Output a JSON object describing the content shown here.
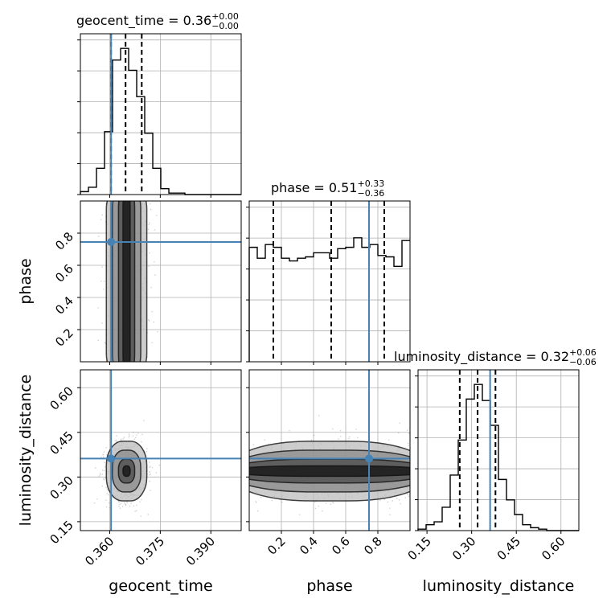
{
  "chart_data": {
    "type": "corner",
    "parameters": [
      "geocent_time",
      "phase",
      "luminosity_distance"
    ],
    "colors": {
      "truth": "#4682b4",
      "hist": "#000000",
      "grid": "#b0b0b0",
      "points": "#6e6e6e"
    },
    "titles": [
      {
        "base": "geocent_time = 0.36",
        "upper": "+0.00",
        "lower": "−0.00"
      },
      {
        "base": "phase = 0.51",
        "upper": "+0.33",
        "lower": "−0.36"
      },
      {
        "base": "luminosity_distance = 0.32",
        "upper": "+0.06",
        "lower": "−0.06"
      }
    ],
    "axes": {
      "geocent_time": {
        "range": [
          0.3513,
          0.399
        ],
        "ticks": [
          0.36,
          0.375,
          0.39
        ],
        "tick_labels": [
          "0.360",
          "0.375",
          "0.390"
        ]
      },
      "phase": {
        "range": [
          0.0,
          1.0
        ],
        "ticks": [
          0.2,
          0.4,
          0.6,
          0.8
        ],
        "tick_labels": [
          "0.2",
          "0.4",
          "0.6",
          "0.8"
        ]
      },
      "luminosity_distance": {
        "range": [
          0.12,
          0.66
        ],
        "ticks": [
          0.15,
          0.3,
          0.45,
          0.6
        ],
        "tick_labels": [
          "0.15",
          "0.30",
          "0.45",
          "0.60"
        ]
      }
    },
    "truths": {
      "geocent_time": 0.3604,
      "phase": 0.745,
      "luminosity_distance": 0.362
    },
    "quantiles": {
      "geocent_time": [
        0.3604,
        0.3647,
        0.3695
      ],
      "phase": [
        0.15,
        0.51,
        0.84
      ],
      "luminosity_distance": [
        0.26,
        0.32,
        0.38
      ]
    },
    "histograms": {
      "geocent_time": {
        "edges": [
          0.3513,
          0.35369,
          0.35607,
          0.35846,
          0.36084,
          0.36323,
          0.36561,
          0.368,
          0.37038,
          0.37277,
          0.37515,
          0.37754,
          0.37992,
          0.38231,
          0.38469,
          0.38708,
          0.38946,
          0.39185,
          0.39423,
          0.39662,
          0.399
        ],
        "counts": [
          2,
          5,
          18,
          43,
          92,
          100,
          85,
          67,
          42,
          18,
          4,
          1,
          1,
          0,
          0,
          0,
          0,
          0,
          0,
          0
        ]
      },
      "phase": {
        "edges": [
          0.0,
          0.05,
          0.1,
          0.15,
          0.2,
          0.25,
          0.3,
          0.35,
          0.4,
          0.45,
          0.5,
          0.55,
          0.6,
          0.65,
          0.7,
          0.75,
          0.8,
          0.85,
          0.9,
          0.95,
          1.0
        ],
        "counts": [
          84,
          76,
          86,
          84,
          76,
          74,
          76,
          77,
          80,
          80,
          76,
          83,
          84,
          91,
          84,
          86,
          78,
          77,
          70,
          89
        ]
      },
      "luminosity_distance": {
        "edges": [
          0.12,
          0.147,
          0.174,
          0.201,
          0.228,
          0.255,
          0.282,
          0.309,
          0.336,
          0.363,
          0.39,
          0.417,
          0.444,
          0.471,
          0.498,
          0.525,
          0.552,
          0.579,
          0.606,
          0.633,
          0.66
        ],
        "counts": [
          1,
          4,
          6,
          16,
          38,
          62,
          90,
          100,
          89,
          72,
          35,
          21,
          11,
          4,
          2,
          1,
          0,
          0,
          0,
          0
        ]
      }
    },
    "grid": true
  }
}
